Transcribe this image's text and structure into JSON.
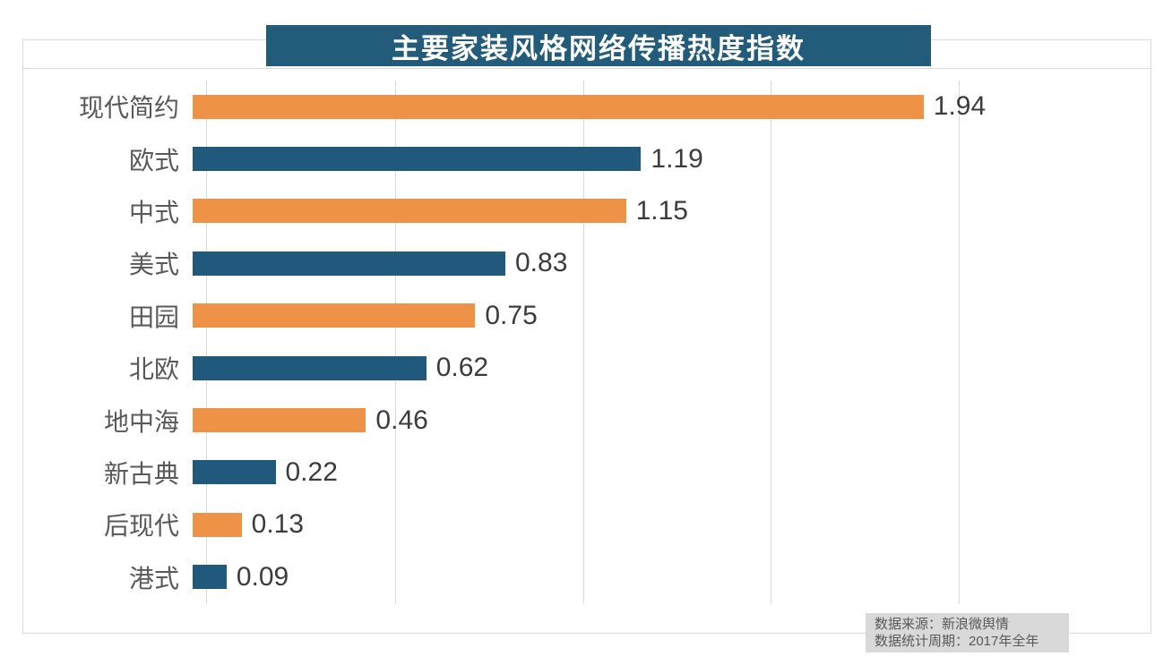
{
  "chart_data": {
    "type": "bar",
    "orientation": "horizontal",
    "title": "主要家装风格网络传播热度指数",
    "categories": [
      "现代简约",
      "欧式",
      "中式",
      "美式",
      "田园",
      "北欧",
      "地中海",
      "新古典",
      "后现代",
      "港式"
    ],
    "values": [
      1.94,
      1.19,
      1.15,
      0.83,
      0.75,
      0.62,
      0.46,
      0.22,
      0.13,
      0.09
    ],
    "value_labels": [
      "1.94",
      "1.19",
      "1.15",
      "0.83",
      "0.75",
      "0.62",
      "0.46",
      "0.22",
      "0.13",
      "0.09"
    ],
    "xlim": [
      0,
      2
    ],
    "gridline_step": 0.5,
    "grid": "vertical-only",
    "legend": "none",
    "bar_colors_alternating": [
      "#EE9247",
      "#20597B"
    ],
    "title_bg": "#235C7B",
    "title_color": "#FFFFFF",
    "grid_color": "#D9D9D9",
    "category_label_color": "#595959",
    "value_label_color": "#3C3C3C"
  },
  "footer": {
    "line1": "数据来源：新浪微舆情",
    "line2": "数据统计周期：2017年全年"
  }
}
